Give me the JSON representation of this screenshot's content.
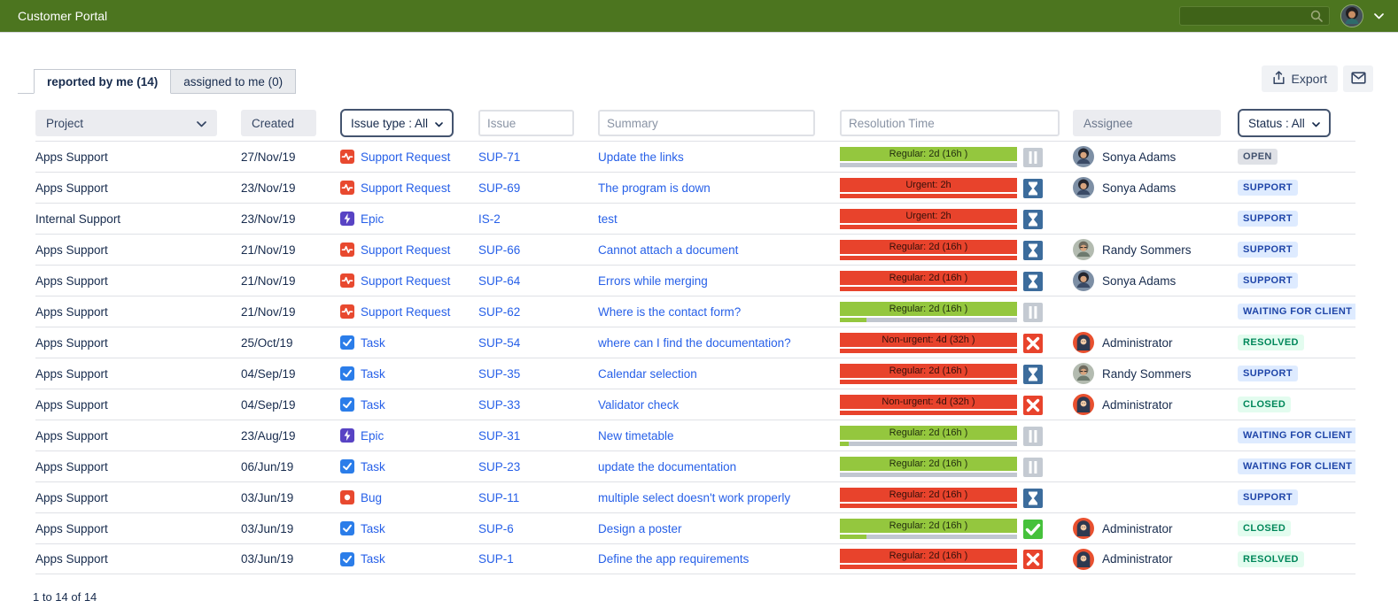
{
  "topbar": {
    "title": "Customer Portal"
  },
  "tabs": {
    "reported": "reported by me (14)",
    "assigned": "assigned to me (0)"
  },
  "toolbar": {
    "export_label": "Export"
  },
  "filters": {
    "project_label": "Project",
    "created_label": "Created",
    "issue_type_label": "Issue type : All",
    "issue_placeholder": "Issue",
    "summary_placeholder": "Summary",
    "resolution_placeholder": "Resolution Time",
    "assignee_label": "Assignee",
    "status_label": "Status : All"
  },
  "colors": {
    "topbar_green": "#4c751f",
    "sla_green": "#94c73e",
    "sla_red": "#e8432c",
    "hourglass_blue": "#3c6c9c",
    "check_green": "#46c13c",
    "link_blue": "#2760e8",
    "badge_blue_bg": "#deebff",
    "badge_green_bg": "#e3fcef",
    "badge_gray_bg": "#dfe1e6"
  },
  "table": {
    "rows": [
      {
        "project": "Apps Support",
        "created": "27/Nov/19",
        "type": {
          "label": "Support Request",
          "kind": "support"
        },
        "key": "SUP-71",
        "summary": "Update the links",
        "sla": {
          "label": "Regular: 2d (16h )",
          "color": "green",
          "icon": "pause",
          "progress": {
            "fill": "none",
            "pct": 0
          }
        },
        "assignee": {
          "name": "Sonya Adams",
          "avatar": "sonya"
        },
        "status": {
          "label": "OPEN",
          "kind": "gray"
        }
      },
      {
        "project": "Apps Support",
        "created": "23/Nov/19",
        "type": {
          "label": "Support Request",
          "kind": "support"
        },
        "key": "SUP-69",
        "summary": "The program is down",
        "sla": {
          "label": "Urgent: 2h",
          "color": "red",
          "icon": "hourglass",
          "progress": {
            "fill": "red",
            "pct": 100
          }
        },
        "assignee": {
          "name": "Sonya Adams",
          "avatar": "sonya"
        },
        "status": {
          "label": "SUPPORT",
          "kind": "blue"
        }
      },
      {
        "project": "Internal Support",
        "created": "23/Nov/19",
        "type": {
          "label": "Epic",
          "kind": "epic"
        },
        "key": "IS-2",
        "summary": "test",
        "sla": {
          "label": "Urgent: 2h",
          "color": "red",
          "icon": "hourglass",
          "progress": {
            "fill": "red",
            "pct": 100
          }
        },
        "assignee": null,
        "status": {
          "label": "SUPPORT",
          "kind": "blue"
        }
      },
      {
        "project": "Apps Support",
        "created": "21/Nov/19",
        "type": {
          "label": "Support Request",
          "kind": "support"
        },
        "key": "SUP-66",
        "summary": "Cannot attach a document",
        "sla": {
          "label": "Regular: 2d (16h )",
          "color": "red",
          "icon": "hourglass",
          "progress": {
            "fill": "red",
            "pct": 100
          }
        },
        "assignee": {
          "name": "Randy Sommers",
          "avatar": "randy"
        },
        "status": {
          "label": "SUPPORT",
          "kind": "blue"
        }
      },
      {
        "project": "Apps Support",
        "created": "21/Nov/19",
        "type": {
          "label": "Support Request",
          "kind": "support"
        },
        "key": "SUP-64",
        "summary": "Errors while merging",
        "sla": {
          "label": "Regular: 2d (16h )",
          "color": "red",
          "icon": "hourglass",
          "progress": {
            "fill": "red",
            "pct": 100
          }
        },
        "assignee": {
          "name": "Sonya Adams",
          "avatar": "sonya"
        },
        "status": {
          "label": "SUPPORT",
          "kind": "blue"
        }
      },
      {
        "project": "Apps Support",
        "created": "21/Nov/19",
        "type": {
          "label": "Support Request",
          "kind": "support"
        },
        "key": "SUP-62",
        "summary": "Where is the contact form?",
        "sla": {
          "label": "Regular: 2d (16h )",
          "color": "green",
          "icon": "pause",
          "progress": {
            "fill": "green",
            "pct": 15
          }
        },
        "assignee": null,
        "status": {
          "label": "WAITING FOR CLIENT",
          "kind": "blue"
        }
      },
      {
        "project": "Apps Support",
        "created": "25/Oct/19",
        "type": {
          "label": "Task",
          "kind": "task"
        },
        "key": "SUP-54",
        "summary": "where can I find the documentation?",
        "sla": {
          "label": "Non-urgent: 4d (32h )",
          "color": "red",
          "icon": "x",
          "progress": {
            "fill": "red",
            "pct": 100
          }
        },
        "assignee": {
          "name": "Administrator",
          "avatar": "admin"
        },
        "status": {
          "label": "RESOLVED",
          "kind": "green"
        }
      },
      {
        "project": "Apps Support",
        "created": "04/Sep/19",
        "type": {
          "label": "Task",
          "kind": "task"
        },
        "key": "SUP-35",
        "summary": "Calendar selection",
        "sla": {
          "label": "Regular: 2d (16h )",
          "color": "red",
          "icon": "hourglass",
          "progress": {
            "fill": "red",
            "pct": 100
          }
        },
        "assignee": {
          "name": "Randy Sommers",
          "avatar": "randy"
        },
        "status": {
          "label": "SUPPORT",
          "kind": "blue"
        }
      },
      {
        "project": "Apps Support",
        "created": "04/Sep/19",
        "type": {
          "label": "Task",
          "kind": "task"
        },
        "key": "SUP-33",
        "summary": "Validator check",
        "sla": {
          "label": "Non-urgent: 4d (32h )",
          "color": "red",
          "icon": "x",
          "progress": {
            "fill": "red",
            "pct": 100
          }
        },
        "assignee": {
          "name": "Administrator",
          "avatar": "admin"
        },
        "status": {
          "label": "CLOSED",
          "kind": "green"
        }
      },
      {
        "project": "Apps Support",
        "created": "23/Aug/19",
        "type": {
          "label": "Epic",
          "kind": "epic"
        },
        "key": "SUP-31",
        "summary": "New timetable",
        "sla": {
          "label": "Regular: 2d (16h )",
          "color": "green",
          "icon": "pause",
          "progress": {
            "fill": "green",
            "pct": 5
          }
        },
        "assignee": null,
        "status": {
          "label": "WAITING FOR CLIENT",
          "kind": "blue"
        }
      },
      {
        "project": "Apps Support",
        "created": "06/Jun/19",
        "type": {
          "label": "Task",
          "kind": "task"
        },
        "key": "SUP-23",
        "summary": "update the documentation",
        "sla": {
          "label": "Regular: 2d (16h )",
          "color": "green",
          "icon": "pause",
          "progress": {
            "fill": "none",
            "pct": 0
          }
        },
        "assignee": null,
        "status": {
          "label": "WAITING FOR CLIENT",
          "kind": "blue"
        }
      },
      {
        "project": "Apps Support",
        "created": "03/Jun/19",
        "type": {
          "label": "Bug",
          "kind": "bug"
        },
        "key": "SUP-11",
        "summary": "multiple select doesn't work properly",
        "sla": {
          "label": "Regular: 2d (16h )",
          "color": "red",
          "icon": "hourglass",
          "progress": {
            "fill": "red",
            "pct": 100
          }
        },
        "assignee": null,
        "status": {
          "label": "SUPPORT",
          "kind": "blue"
        }
      },
      {
        "project": "Apps Support",
        "created": "03/Jun/19",
        "type": {
          "label": "Task",
          "kind": "task"
        },
        "key": "SUP-6",
        "summary": "Design a poster",
        "sla": {
          "label": "Regular: 2d (16h )",
          "color": "green",
          "icon": "check",
          "progress": {
            "fill": "green",
            "pct": 15
          }
        },
        "assignee": {
          "name": "Administrator",
          "avatar": "admin"
        },
        "status": {
          "label": "CLOSED",
          "kind": "green"
        }
      },
      {
        "project": "Apps Support",
        "created": "03/Jun/19",
        "type": {
          "label": "Task",
          "kind": "task"
        },
        "key": "SUP-1",
        "summary": "Define the app requirements",
        "sla": {
          "label": "Regular: 2d (16h )",
          "color": "red",
          "icon": "x",
          "progress": {
            "fill": "red",
            "pct": 100
          }
        },
        "assignee": {
          "name": "Administrator",
          "avatar": "admin"
        },
        "status": {
          "label": "RESOLVED",
          "kind": "green"
        }
      }
    ]
  },
  "footer": {
    "range_text": "1 to 14 of 14"
  }
}
